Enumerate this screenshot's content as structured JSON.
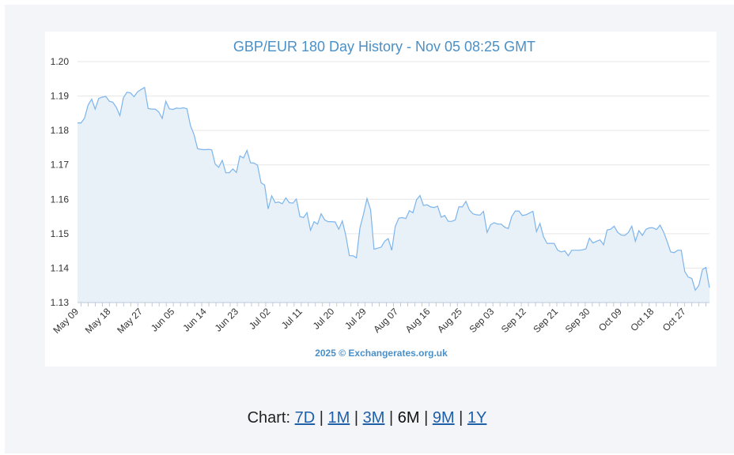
{
  "chart_data": {
    "type": "area",
    "title": "GBP/EUR 180 Day History - Nov 05 08:25 GMT",
    "credit": "2025 © Exchangerates.org.uk",
    "xlabel": "",
    "ylabel": "",
    "ylim": [
      1.13,
      1.2
    ],
    "yticks": [
      "1.20",
      "1.19",
      "1.18",
      "1.17",
      "1.16",
      "1.15",
      "1.14",
      "1.13"
    ],
    "xticks": [
      "May 09",
      "May 18",
      "May 27",
      "Jun 05",
      "Jun 14",
      "Jun 23",
      "Jul 02",
      "Jul 11",
      "Jul 20",
      "Jul 29",
      "Aug 07",
      "Aug 16",
      "Aug 25",
      "Sep 03",
      "Sep 12",
      "Sep 21",
      "Sep 30",
      "Oct 09",
      "Oct 18",
      "Oct 27"
    ],
    "x_start": "May 09",
    "values": [
      1.1822,
      1.1822,
      1.1836,
      1.1874,
      1.1891,
      1.1862,
      1.1893,
      1.1897,
      1.1899,
      1.1885,
      1.1882,
      1.1867,
      1.1843,
      1.1895,
      1.1911,
      1.1909,
      1.1898,
      1.1912,
      1.1919,
      1.1925,
      1.1864,
      1.1862,
      1.1862,
      1.1854,
      1.1835,
      1.1885,
      1.1863,
      1.1861,
      1.1865,
      1.1864,
      1.1866,
      1.1863,
      1.1814,
      1.1788,
      1.1747,
      1.1745,
      1.1744,
      1.1745,
      1.1744,
      1.1702,
      1.1693,
      1.1713,
      1.1677,
      1.1677,
      1.1688,
      1.1678,
      1.1726,
      1.172,
      1.1742,
      1.1706,
      1.1705,
      1.1699,
      1.1648,
      1.1641,
      1.1572,
      1.161,
      1.159,
      1.1592,
      1.1587,
      1.1604,
      1.159,
      1.1589,
      1.1601,
      1.155,
      1.1547,
      1.1561,
      1.151,
      1.1535,
      1.1528,
      1.1558,
      1.154,
      1.1535,
      1.1535,
      1.1534,
      1.1513,
      1.1537,
      1.1495,
      1.1436,
      1.1436,
      1.143,
      1.1517,
      1.1557,
      1.1602,
      1.157,
      1.1455,
      1.1458,
      1.1461,
      1.1478,
      1.1486,
      1.1452,
      1.1521,
      1.1545,
      1.1547,
      1.1544,
      1.1567,
      1.1561,
      1.1598,
      1.1611,
      1.1582,
      1.1584,
      1.1578,
      1.1576,
      1.158,
      1.1548,
      1.1553,
      1.1536,
      1.1536,
      1.154,
      1.1578,
      1.1578,
      1.1594,
      1.1569,
      1.1558,
      1.1555,
      1.1554,
      1.1565,
      1.1504,
      1.1526,
      1.1532,
      1.1528,
      1.1528,
      1.1519,
      1.1515,
      1.155,
      1.1566,
      1.1566,
      1.1553,
      1.1555,
      1.156,
      1.1565,
      1.1506,
      1.153,
      1.1491,
      1.1472,
      1.1472,
      1.1472,
      1.1452,
      1.1447,
      1.145,
      1.1436,
      1.1452,
      1.1452,
      1.1452,
      1.1453,
      1.1456,
      1.1487,
      1.1473,
      1.1478,
      1.1482,
      1.1468,
      1.1511,
      1.1513,
      1.1522,
      1.1504,
      1.1496,
      1.1495,
      1.1503,
      1.1522,
      1.1478,
      1.1509,
      1.1495,
      1.1513,
      1.1517,
      1.1517,
      1.1512,
      1.1525,
      1.1505,
      1.1478,
      1.1447,
      1.1445,
      1.1452,
      1.1452,
      1.139,
      1.1374,
      1.137,
      1.1336,
      1.135,
      1.1396,
      1.1402,
      1.1343
    ],
    "line_color": "#7cb5ec",
    "fill_color": "#e8f0f8",
    "grid": true,
    "legend": "none"
  },
  "nav": {
    "prefix": "Chart:",
    "sep": "|",
    "links": [
      {
        "label": "7D",
        "active": false
      },
      {
        "label": "1M",
        "active": false
      },
      {
        "label": "3M",
        "active": false
      },
      {
        "label": "6M",
        "active": true
      },
      {
        "label": "9M",
        "active": false
      },
      {
        "label": "1Y",
        "active": false
      }
    ]
  }
}
